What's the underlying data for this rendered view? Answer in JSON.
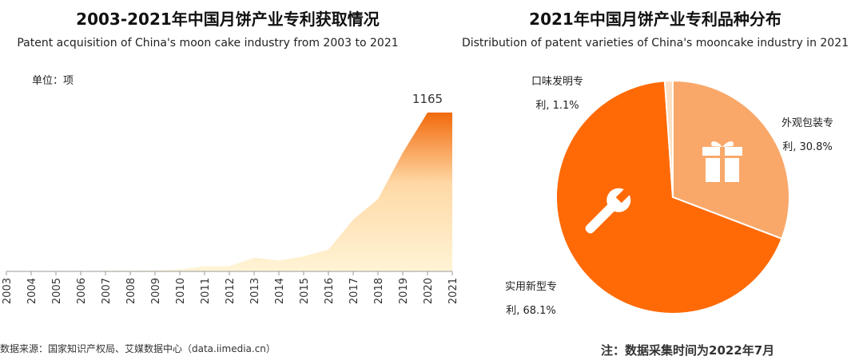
{
  "chart_data": [
    {
      "type": "area",
      "title": "2003-2021年中国月饼产业专利获取情况",
      "subtitle": "Patent acquisition of China's moon cake industry from 2003 to 2021",
      "unit_label": "单位：项",
      "categories": [
        "2003",
        "2004",
        "2005",
        "2006",
        "2007",
        "2008",
        "2009",
        "2010",
        "2011",
        "2012",
        "2013",
        "2014",
        "2015",
        "2016",
        "2017",
        "2018",
        "2019",
        "2020",
        "2021"
      ],
      "values": [
        0,
        0,
        1,
        2,
        5,
        5,
        6,
        15,
        38,
        38,
        100,
        80,
        110,
        160,
        380,
        530,
        870,
        1165,
        1165
      ],
      "value_labels": [
        {
          "index": 17,
          "text": "1165"
        }
      ],
      "ylim": [
        0,
        1200
      ],
      "grid": false,
      "colors": {
        "top": "#f26a0c",
        "mid": "#ffd9a6",
        "bottom": "#fff4d6"
      }
    },
    {
      "type": "pie",
      "title": "2021年中国月饼产业专利品种分布",
      "subtitle": "Distribution of patent varieties of China's mooncake industry in 2021",
      "slices": [
        {
          "name": "外观包装专利",
          "value": 30.8,
          "label_line1": "外观包装专",
          "label_line2": "利, 30.8%",
          "color": "#f9a86a",
          "icon": "gift-icon"
        },
        {
          "name": "实用新型专利",
          "value": 68.1,
          "label_line1": "实用新型专",
          "label_line2": "利, 68.1%",
          "color": "#ff6a06",
          "icon": "wrench-icon"
        },
        {
          "name": "口味发明专利",
          "value": 1.1,
          "label_line1": "口味发明专",
          "label_line2": "利, 1.1%",
          "color": "#fde0c4",
          "icon": ""
        }
      ]
    }
  ],
  "footer": {
    "source": "数据来源：国家知识产权局、艾媒数据中心（data.iimedia.cn）",
    "note": "注：数据采集时间为2022年7月"
  }
}
